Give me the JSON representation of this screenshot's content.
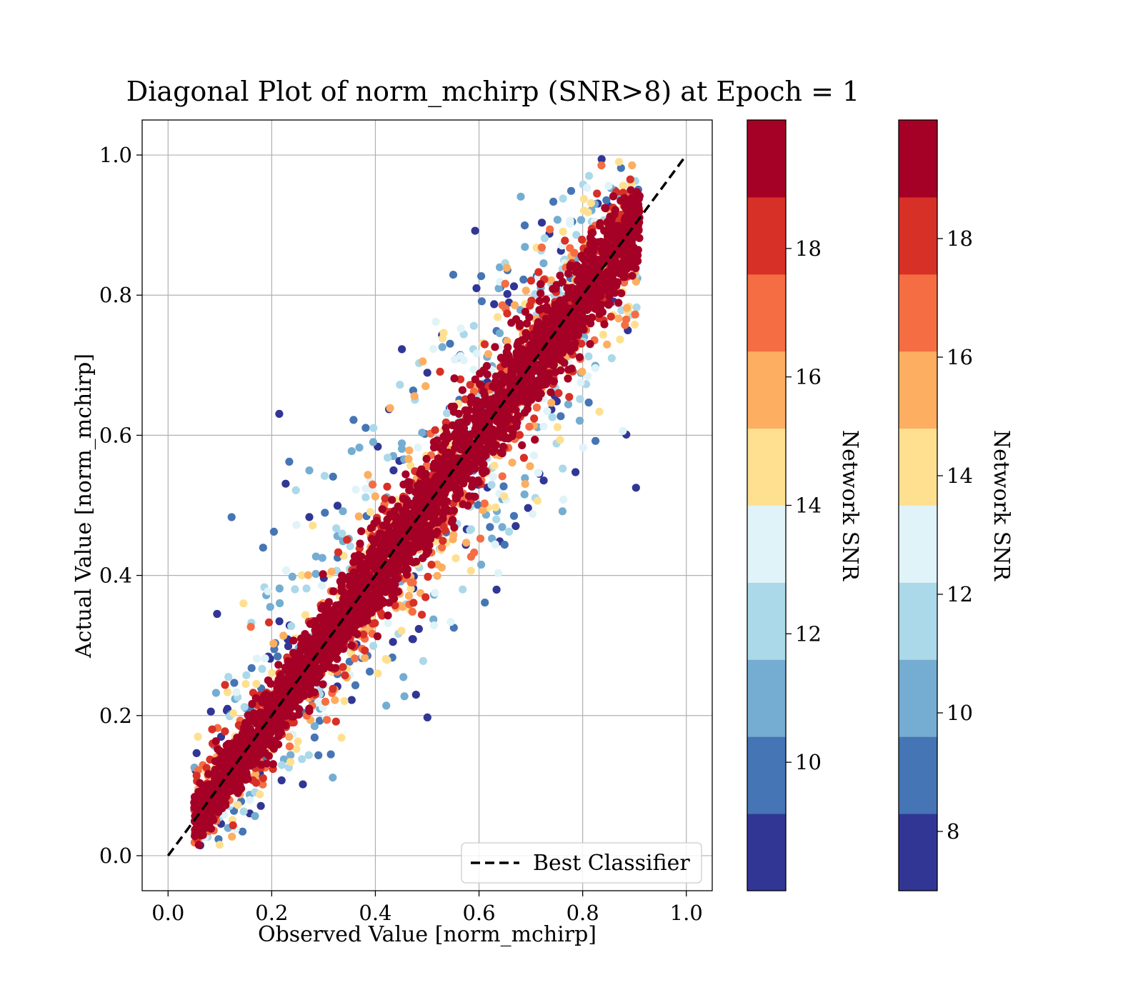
{
  "chart_data": {
    "type": "scatter",
    "title": "Diagonal Plot of norm_mchirp (SNR>8) at Epoch = 1",
    "xlabel": "Observed Value [norm_mchirp]",
    "ylabel": "Actual Value [norm_mchirp]",
    "xlim": [
      -0.05,
      1.05
    ],
    "ylim": [
      -0.05,
      1.05
    ],
    "xticks": [
      "0.0",
      "0.2",
      "0.4",
      "0.6",
      "0.8",
      "1.0"
    ],
    "yticks": [
      "0.0",
      "0.2",
      "0.4",
      "0.6",
      "0.8",
      "1.0"
    ],
    "grid": true,
    "reference_line": {
      "name": "Best Classifier",
      "style": "dashed",
      "color": "#000000",
      "x": [
        0,
        1
      ],
      "y": [
        0,
        1
      ]
    },
    "legend": {
      "position": "bottom-right",
      "entries": [
        "Best Classifier"
      ]
    },
    "point_distribution": {
      "color_variable": "Network SNR",
      "relation": "points cluster along y = x; scatter around the diagonal widens as SNR decreases",
      "x_range": [
        0.05,
        0.9
      ],
      "y_range": [
        0.0,
        1.0
      ],
      "high_snr_color": "#a50026",
      "low_snr_color": "#313695"
    },
    "colorbars": [
      {
        "label": "Network SNR",
        "range": [
          8.0,
          20.0
        ],
        "ticks": [
          10,
          12,
          14,
          16,
          18
        ],
        "colors": [
          "#313695",
          "#4575b4",
          "#74add1",
          "#abd9e9",
          "#e0f3f8",
          "#fee090",
          "#fdae61",
          "#f46d43",
          "#d73027",
          "#a50026"
        ]
      },
      {
        "label": "Network SNR",
        "range": [
          7.0,
          20.0
        ],
        "ticks": [
          8,
          10,
          12,
          14,
          16,
          18
        ],
        "colors": [
          "#313695",
          "#4575b4",
          "#74add1",
          "#abd9e9",
          "#e0f3f8",
          "#fee090",
          "#fdae61",
          "#f46d43",
          "#d73027",
          "#a50026"
        ]
      }
    ]
  }
}
